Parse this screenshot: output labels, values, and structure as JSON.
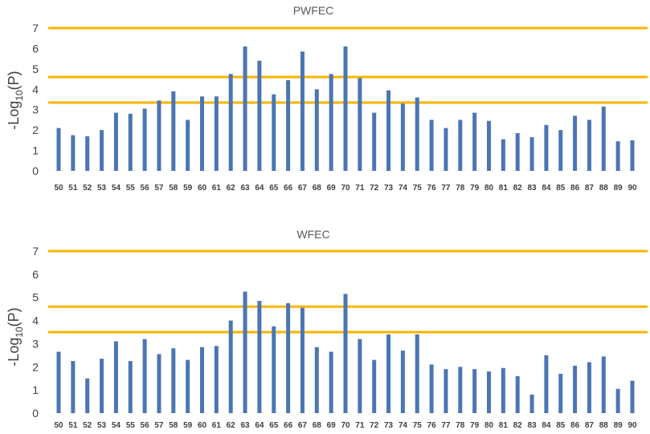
{
  "colors": {
    "bar": "#4a76b4",
    "threshold": "#f7b500",
    "text": "#404040",
    "title": "#595959"
  },
  "chart_data": [
    {
      "type": "bar",
      "title": "PWFEC",
      "ylabel": "-Log10(P)",
      "ylabel_main": "-Log",
      "ylabel_sub": "10",
      "ylabel_tail": "(P)",
      "ylim": [
        0,
        7
      ],
      "yticks": [
        "0",
        "1",
        "2",
        "3",
        "4",
        "5",
        "6",
        "7"
      ],
      "grid": false,
      "categories": [
        "50",
        "51",
        "52",
        "53",
        "54",
        "55",
        "56",
        "57",
        "58",
        "59",
        "60",
        "61",
        "62",
        "63",
        "64",
        "65",
        "66",
        "67",
        "68",
        "69",
        "70",
        "71",
        "72",
        "73",
        "74",
        "75",
        "76",
        "77",
        "78",
        "79",
        "80",
        "81",
        "82",
        "83",
        "84",
        "85",
        "86",
        "87",
        "88",
        "89",
        "90"
      ],
      "values": [
        2.1,
        1.75,
        1.7,
        2.0,
        2.85,
        2.8,
        3.05,
        3.45,
        3.9,
        2.5,
        3.65,
        3.65,
        4.75,
        6.1,
        5.4,
        3.75,
        4.45,
        5.85,
        4.0,
        4.75,
        6.1,
        4.55,
        2.85,
        3.95,
        3.3,
        3.6,
        2.5,
        2.1,
        2.5,
        2.85,
        2.45,
        1.55,
        1.85,
        1.65,
        2.25,
        2.0,
        2.7,
        2.5,
        3.15,
        1.45,
        1.5
      ],
      "thresholds": [
        7.0,
        4.6,
        3.35
      ]
    },
    {
      "type": "bar",
      "title": "WFEC",
      "ylabel": "-Log10(P)",
      "ylabel_main": "-Log",
      "ylabel_sub": "10",
      "ylabel_tail": "(P)",
      "ylim": [
        0,
        7
      ],
      "yticks": [
        "0",
        "1",
        "2",
        "3",
        "4",
        "5",
        "6",
        "7"
      ],
      "grid": false,
      "categories": [
        "50",
        "51",
        "52",
        "53",
        "54",
        "55",
        "56",
        "57",
        "58",
        "59",
        "60",
        "61",
        "62",
        "63",
        "64",
        "65",
        "66",
        "67",
        "68",
        "69",
        "70",
        "71",
        "72",
        "73",
        "74",
        "75",
        "76",
        "77",
        "78",
        "79",
        "80",
        "81",
        "82",
        "83",
        "84",
        "85",
        "86",
        "87",
        "88",
        "89",
        "90"
      ],
      "values": [
        2.65,
        2.25,
        1.5,
        2.35,
        3.1,
        2.25,
        3.2,
        2.55,
        2.8,
        2.3,
        2.85,
        2.9,
        4.0,
        5.25,
        4.85,
        3.75,
        4.75,
        4.55,
        2.85,
        2.65,
        5.15,
        3.2,
        2.3,
        3.4,
        2.7,
        3.4,
        2.1,
        1.9,
        2.0,
        1.9,
        1.8,
        1.95,
        1.6,
        0.8,
        2.5,
        1.7,
        2.05,
        2.2,
        2.45,
        1.05,
        1.4
      ],
      "thresholds": [
        7.0,
        4.6,
        3.5
      ]
    }
  ]
}
